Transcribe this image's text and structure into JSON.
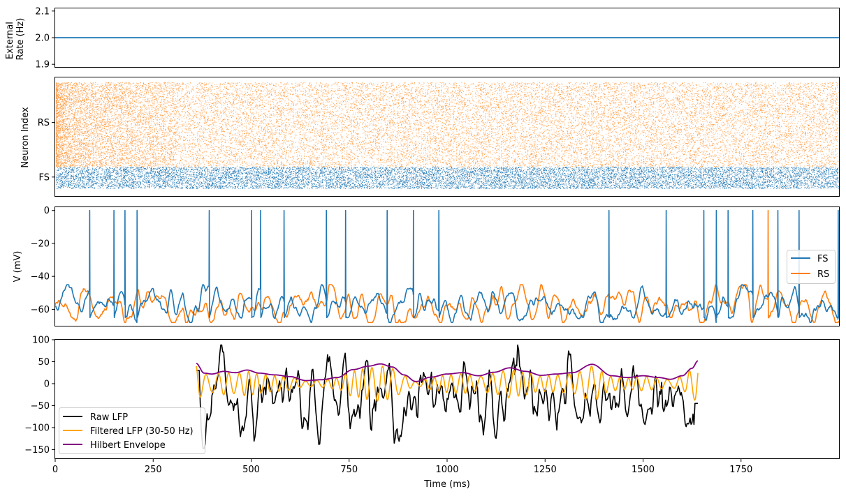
{
  "colors": {
    "fs": "#1f77b4",
    "rs": "#ff7f0e",
    "raw_lfp": "#000000",
    "filtered_lfp": "#ffa500",
    "envelope": "#800080"
  },
  "chart_data": [
    {
      "id": "external-rate",
      "type": "line",
      "ylabel": [
        "External",
        "Rate (Hz)"
      ],
      "xlim": [
        0,
        2000
      ],
      "ylim": [
        1.89,
        2.11
      ],
      "yticks": [
        1.9,
        2.0,
        2.1
      ],
      "ytick_labels": [
        "1.9",
        "2.0",
        "2.1"
      ],
      "series": [
        {
          "x": [
            0,
            2000
          ],
          "y": [
            2.0,
            2.0
          ]
        }
      ]
    },
    {
      "id": "raster",
      "type": "scatter",
      "ylabel": "Neuron Index",
      "xlim": [
        0,
        2000
      ],
      "ylim": [
        -2000,
        10500
      ],
      "yticks": [
        0,
        5750
      ],
      "ytick_labels": [
        "FS",
        "RS"
      ],
      "groups": [
        {
          "name": "FS",
          "index_range": [
            -1200,
            1100
          ],
          "color_key": "fs"
        },
        {
          "name": "RS",
          "index_range": [
            1100,
            10000
          ],
          "color_key": "rs"
        }
      ]
    },
    {
      "id": "voltage",
      "type": "line",
      "ylabel": "V (mV)",
      "xlim": [
        0,
        2000
      ],
      "ylim": [
        -70,
        2
      ],
      "yticks": [
        0,
        -20,
        -40,
        -60
      ],
      "ytick_labels": [
        "0",
        "−20",
        "−40",
        "−60"
      ],
      "legend": {
        "position": "center-right",
        "entries": [
          "FS",
          "RS"
        ]
      },
      "series": [
        {
          "name": "FS",
          "baseline": -57,
          "spike_times": [
            88,
            150,
            178,
            209,
            393,
            501,
            524,
            584,
            692,
            741,
            847,
            914,
            979,
            1413,
            1559,
            1655,
            1687,
            1717,
            1780,
            1844,
            1898,
            1998
          ]
        },
        {
          "name": "RS",
          "baseline": -58,
          "spike_times": [
            1819
          ]
        }
      ]
    },
    {
      "id": "lfp",
      "type": "line",
      "xlabel": "Time (ms)",
      "xlim": [
        0,
        2000
      ],
      "ylim": [
        -170,
        100
      ],
      "yticks": [
        100,
        50,
        0,
        -50,
        -100,
        -150
      ],
      "ytick_labels": [
        "100",
        "50",
        "0",
        "−50",
        "−100",
        "−150"
      ],
      "xticks": [
        0,
        250,
        500,
        750,
        1000,
        1250,
        1500,
        1750
      ],
      "xtick_labels": [
        "0",
        "250",
        "500",
        "750",
        "1000",
        "1250",
        "1500",
        "1750"
      ],
      "data_range": [
        360,
        1640
      ],
      "legend": {
        "position": "lower-left",
        "entries": [
          "Raw LFP",
          "Filtered LFP (30-50 Hz)",
          "Hilbert Envelope"
        ]
      },
      "envelope_points": [
        [
          360,
          46
        ],
        [
          380,
          24
        ],
        [
          400,
          22
        ],
        [
          430,
          28
        ],
        [
          460,
          25
        ],
        [
          490,
          31
        ],
        [
          520,
          24
        ],
        [
          560,
          20
        ],
        [
          600,
          16
        ],
        [
          640,
          7
        ],
        [
          680,
          9
        ],
        [
          720,
          14
        ],
        [
          760,
          32
        ],
        [
          800,
          40
        ],
        [
          830,
          45
        ],
        [
          860,
          38
        ],
        [
          890,
          20
        ],
        [
          920,
          5
        ],
        [
          960,
          15
        ],
        [
          1000,
          22
        ],
        [
          1040,
          25
        ],
        [
          1080,
          18
        ],
        [
          1120,
          26
        ],
        [
          1160,
          36
        ],
        [
          1200,
          28
        ],
        [
          1240,
          19
        ],
        [
          1280,
          22
        ],
        [
          1320,
          25
        ],
        [
          1370,
          44
        ],
        [
          1420,
          18
        ],
        [
          1460,
          14
        ],
        [
          1500,
          18
        ],
        [
          1540,
          14
        ],
        [
          1570,
          10
        ],
        [
          1600,
          18
        ],
        [
          1625,
          35
        ],
        [
          1640,
          52
        ]
      ]
    }
  ]
}
